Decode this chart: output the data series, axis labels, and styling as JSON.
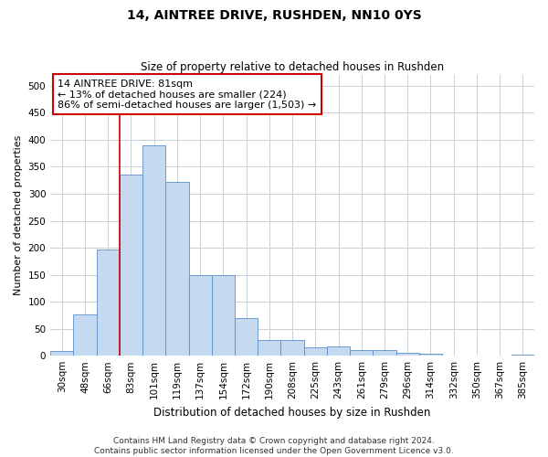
{
  "title": "14, AINTREE DRIVE, RUSHDEN, NN10 0YS",
  "subtitle": "Size of property relative to detached houses in Rushden",
  "xlabel": "Distribution of detached houses by size in Rushden",
  "ylabel": "Number of detached properties",
  "categories": [
    "30sqm",
    "48sqm",
    "66sqm",
    "83sqm",
    "101sqm",
    "119sqm",
    "137sqm",
    "154sqm",
    "172sqm",
    "190sqm",
    "208sqm",
    "225sqm",
    "243sqm",
    "261sqm",
    "279sqm",
    "296sqm",
    "314sqm",
    "332sqm",
    "350sqm",
    "367sqm",
    "385sqm"
  ],
  "values": [
    8,
    76,
    197,
    335,
    390,
    322,
    149,
    149,
    70,
    29,
    29,
    15,
    18,
    11,
    11,
    6,
    3,
    1,
    1,
    1,
    2
  ],
  "bar_color": "#c5d9f0",
  "bar_edge_color": "#5b8fc9",
  "vline_index": 3,
  "vline_color": "#cc0000",
  "annotation_line1": "14 AINTREE DRIVE: 81sqm",
  "annotation_line2": "← 13% of detached houses are smaller (224)",
  "annotation_line3": "86% of semi-detached houses are larger (1,503) →",
  "annotation_box_facecolor": "#ffffff",
  "annotation_box_edgecolor": "#cc0000",
  "ylim": [
    0,
    520
  ],
  "yticks": [
    0,
    50,
    100,
    150,
    200,
    250,
    300,
    350,
    400,
    450,
    500
  ],
  "title_fontsize": 10,
  "subtitle_fontsize": 8.5,
  "xlabel_fontsize": 8.5,
  "ylabel_fontsize": 8,
  "tick_fontsize": 7.5,
  "annotation_fontsize": 8,
  "footer_line1": "Contains HM Land Registry data © Crown copyright and database right 2024.",
  "footer_line2": "Contains public sector information licensed under the Open Government Licence v3.0.",
  "footer_fontsize": 6.5,
  "bg_color": "#ffffff",
  "grid_color": "#c8d0d8"
}
